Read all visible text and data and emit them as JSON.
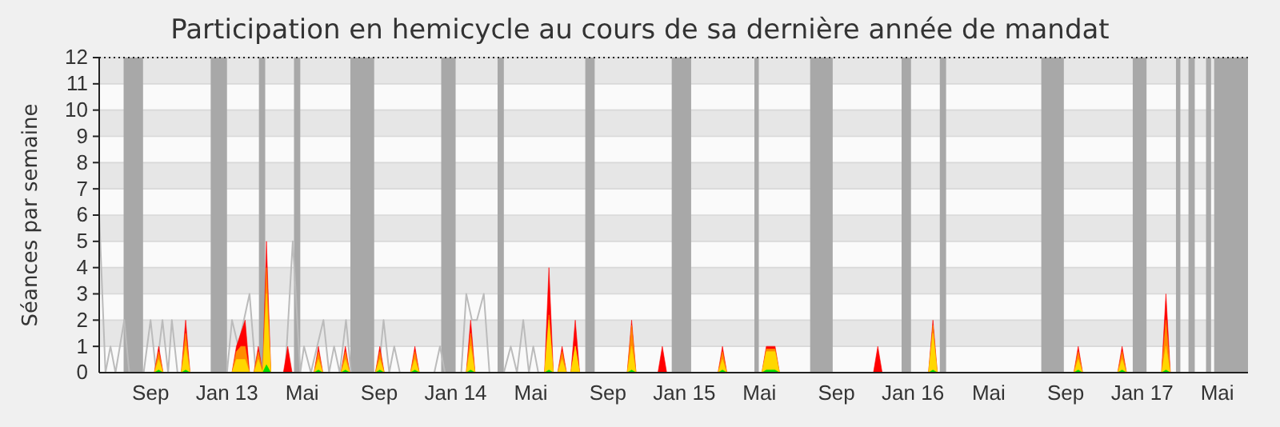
{
  "chart_data": {
    "type": "area",
    "title": "Participation en hemicycle au cours de sa dernière année de mandat",
    "ylabel": "Séances par semaine",
    "x": [
      "2012-09-07",
      "2012-09-14",
      "2012-09-21",
      "2012-10-20",
      "2012-10-27",
      "2012-11-03",
      "2013-01-09",
      "2013-01-16",
      "2013-01-23",
      "2013-01-30",
      "2013-02-06",
      "2013-02-13",
      "2013-02-20",
      "2013-02-27",
      "2013-03-05",
      "2013-03-12",
      "2013-04-01",
      "2013-04-08",
      "2013-04-15",
      "2013-05-20",
      "2013-05-27",
      "2013-06-03",
      "2013-07-02",
      "2013-07-09",
      "2013-07-16",
      "2013-08-26",
      "2013-09-02",
      "2013-09-09",
      "2013-10-21",
      "2013-10-28",
      "2013-11-04",
      "2014-01-18",
      "2014-01-25",
      "2014-02-01",
      "2014-05-23",
      "2014-05-30",
      "2014-06-06",
      "2014-06-13",
      "2014-06-20",
      "2014-06-27",
      "2014-07-04",
      "2014-07-11",
      "2014-07-18",
      "2014-10-02",
      "2014-10-09",
      "2014-10-16",
      "2014-11-20",
      "2014-11-27",
      "2014-12-04",
      "2015-02-24",
      "2015-03-03",
      "2015-03-10",
      "2015-05-05",
      "2015-05-12",
      "2015-05-19",
      "2015-05-26",
      "2015-06-02",
      "2015-10-30",
      "2015-11-06",
      "2015-11-13",
      "2016-01-26",
      "2016-02-02",
      "2016-02-09",
      "2016-09-14",
      "2016-09-21",
      "2016-09-28",
      "2016-11-23",
      "2016-11-30",
      "2016-12-07",
      "2017-02-01",
      "2017-02-08",
      "2017-02-15"
    ],
    "series": [
      {
        "type": "line",
        "color": "#bbbbbb",
        "x": [
          "2012-06-11",
          "2012-06-21",
          "2012-06-29",
          "2012-07-07",
          "2012-07-21",
          "2012-07-29",
          "2012-08-21",
          "2012-09-01",
          "2012-09-10",
          "2012-09-20",
          "2012-09-29",
          "2012-10-05",
          "2012-10-14",
          "2013-01-01",
          "2013-01-09",
          "2013-01-19",
          "2013-02-06",
          "2013-02-16",
          "2013-04-04",
          "2013-04-16",
          "2013-04-28",
          "2013-05-04",
          "2013-05-15",
          "2013-06-04",
          "2013-06-13",
          "2013-06-21",
          "2013-06-30",
          "2013-07-10",
          "2013-07-18",
          "2013-08-31",
          "2013-09-08",
          "2013-09-17",
          "2013-09-25",
          "2013-10-04",
          "2013-11-28",
          "2013-12-07",
          "2013-12-15",
          "2014-01-10",
          "2014-01-18",
          "2014-01-27",
          "2014-02-04",
          "2014-02-15",
          "2014-02-24",
          "2014-03-19",
          "2014-03-30",
          "2014-04-09",
          "2014-04-19",
          "2014-04-28",
          "2014-05-05",
          "2014-05-13"
        ],
        "values": [
          6,
          0,
          1,
          0,
          2,
          0,
          0,
          2,
          0,
          2,
          0,
          2,
          0,
          0,
          2,
          1,
          3,
          0,
          0,
          5,
          0,
          1,
          0,
          2,
          0,
          1,
          0,
          2,
          0,
          0,
          2,
          0,
          1,
          0,
          0,
          1,
          0,
          0,
          3,
          2,
          2,
          3,
          0,
          0,
          1,
          0,
          2,
          0,
          1,
          0
        ]
      },
      {
        "color": "#ff0000",
        "values": [
          0,
          1,
          0,
          0,
          2,
          0,
          0,
          1,
          1.5,
          2,
          0,
          0,
          1,
          0,
          5,
          0,
          0,
          1,
          0,
          0,
          1,
          0,
          0,
          1,
          0,
          0,
          1,
          0,
          0,
          1,
          0,
          0,
          2,
          0,
          0,
          4,
          0,
          0,
          1,
          0,
          0,
          2,
          0,
          0,
          2,
          0,
          0,
          1,
          0,
          0,
          1,
          0,
          0,
          1,
          1,
          1,
          0,
          0,
          1,
          0,
          0,
          2,
          0,
          0,
          1,
          0,
          0,
          1,
          0,
          0,
          3,
          0
        ]
      },
      {
        "color": "#ff8c00",
        "values": [
          0,
          0.8,
          0,
          0,
          1.5,
          0,
          0,
          0.8,
          1,
          1,
          0,
          0,
          0.8,
          0,
          4,
          0,
          0,
          0,
          0,
          0,
          0.8,
          0,
          0,
          0.8,
          0,
          0,
          0.8,
          0,
          0,
          0.8,
          0,
          0,
          1.5,
          0,
          0,
          2.2,
          0,
          0,
          0.8,
          0,
          0,
          1,
          0,
          0,
          1.8,
          0,
          0,
          0,
          0,
          0,
          0.8,
          0,
          0,
          0.9,
          0.9,
          0.9,
          0,
          0,
          0,
          0,
          0,
          1.8,
          0,
          0,
          0.8,
          0,
          0,
          0.8,
          0,
          0,
          2,
          0
        ]
      },
      {
        "color": "#ffd700",
        "values": [
          0,
          0.5,
          0,
          0,
          1,
          0,
          0,
          0.5,
          0.5,
          0.5,
          0,
          0,
          0.5,
          0,
          3,
          0,
          0,
          0,
          0,
          0,
          0.5,
          0,
          0,
          0.5,
          0,
          0,
          0.5,
          0,
          0,
          0.5,
          0,
          0,
          1,
          0,
          0,
          2,
          0,
          0,
          0.5,
          0,
          0,
          1,
          0,
          0,
          1,
          0,
          0,
          0,
          0,
          0,
          0.5,
          0,
          0,
          0.8,
          0.8,
          0.8,
          0,
          0,
          0,
          0,
          0,
          1.5,
          0,
          0,
          0.5,
          0,
          0,
          0.5,
          0,
          0,
          1,
          0
        ]
      },
      {
        "color": "#00e000",
        "values": [
          0,
          0.1,
          0,
          0,
          0.1,
          0,
          0,
          0,
          0,
          0,
          0,
          0,
          0,
          0,
          0.3,
          0,
          0,
          0,
          0,
          0,
          0.1,
          0,
          0,
          0.1,
          0,
          0,
          0.1,
          0,
          0,
          0.1,
          0,
          0,
          0.1,
          0,
          0,
          0.1,
          0,
          0,
          0,
          0,
          0,
          0,
          0,
          0,
          0.1,
          0,
          0,
          0,
          0,
          0,
          0.1,
          0,
          0,
          0.1,
          0.1,
          0.1,
          0,
          0,
          0,
          0,
          0,
          0.1,
          0,
          0,
          0.1,
          0,
          0,
          0.1,
          0,
          0,
          0.1,
          0
        ]
      }
    ],
    "xlim": [
      "2012-06-11",
      "2017-06-19"
    ],
    "xticks": [
      {
        "value": "2012-09-01",
        "label": "Sep"
      },
      {
        "value": "2013-01-01",
        "label": "Jan 13"
      },
      {
        "value": "2013-05-01",
        "label": "Mai"
      },
      {
        "value": "2013-09-01",
        "label": "Sep"
      },
      {
        "value": "2014-01-01",
        "label": "Jan 14"
      },
      {
        "value": "2014-05-01",
        "label": "Mai"
      },
      {
        "value": "2014-09-01",
        "label": "Sep"
      },
      {
        "value": "2015-01-01",
        "label": "Jan 15"
      },
      {
        "value": "2015-05-01",
        "label": "Mai"
      },
      {
        "value": "2015-09-01",
        "label": "Sep"
      },
      {
        "value": "2016-01-01",
        "label": "Jan 16"
      },
      {
        "value": "2016-05-01",
        "label": "Mai"
      },
      {
        "value": "2016-09-01",
        "label": "Sep"
      },
      {
        "value": "2017-01-01",
        "label": "Jan 17"
      },
      {
        "value": "2017-05-01",
        "label": "Mai"
      }
    ],
    "ylim": [
      0,
      12
    ],
    "yticks": [
      0,
      1,
      2,
      3,
      4,
      5,
      6,
      7,
      8,
      9,
      10,
      11,
      12
    ],
    "grid": "y",
    "bands": [
      {
        "axis": "x",
        "from": "2012-07-20",
        "to": "2012-08-20",
        "color": "#a8a8a8"
      },
      {
        "axis": "x",
        "from": "2012-12-06",
        "to": "2013-01-01",
        "color": "#a8a8a8"
      },
      {
        "axis": "x",
        "from": "2013-02-21",
        "to": "2013-03-03",
        "color": "#a8a8a8"
      },
      {
        "axis": "x",
        "from": "2013-04-18",
        "to": "2013-04-28",
        "color": "#a8a8a8"
      },
      {
        "axis": "x",
        "from": "2013-07-17",
        "to": "2013-08-24",
        "color": "#a8a8a8"
      },
      {
        "axis": "x",
        "from": "2013-12-09",
        "to": "2014-01-01",
        "color": "#a8a8a8"
      },
      {
        "axis": "x",
        "from": "2014-03-09",
        "to": "2014-03-19",
        "color": "#a8a8a8"
      },
      {
        "axis": "x",
        "from": "2014-07-27",
        "to": "2014-08-11",
        "color": "#a8a8a8"
      },
      {
        "axis": "x",
        "from": "2014-12-12",
        "to": "2015-01-12",
        "color": "#a8a8a8"
      },
      {
        "axis": "x",
        "from": "2015-04-23",
        "to": "2015-04-30",
        "color": "#a8a8a8"
      },
      {
        "axis": "x",
        "from": "2015-07-21",
        "to": "2015-08-26",
        "color": "#a8a8a8"
      },
      {
        "axis": "x",
        "from": "2015-12-14",
        "to": "2015-12-29",
        "color": "#a8a8a8"
      },
      {
        "axis": "x",
        "from": "2016-02-13",
        "to": "2016-02-23",
        "color": "#a8a8a8"
      },
      {
        "axis": "x",
        "from": "2016-07-24",
        "to": "2016-08-29",
        "color": "#a8a8a8"
      },
      {
        "axis": "x",
        "from": "2016-12-17",
        "to": "2017-01-08",
        "color": "#a8a8a8"
      },
      {
        "axis": "x",
        "from": "2017-02-24",
        "to": "2017-03-03",
        "color": "#a8a8a8"
      },
      {
        "axis": "x",
        "from": "2017-03-16",
        "to": "2017-03-26",
        "color": "#a8a8a8"
      },
      {
        "axis": "x",
        "from": "2017-04-13",
        "to": "2017-04-21",
        "color": "#a8a8a8"
      },
      {
        "axis": "x",
        "from": "2017-04-26",
        "to": "2017-06-19",
        "color": "#a8a8a8"
      }
    ]
  }
}
